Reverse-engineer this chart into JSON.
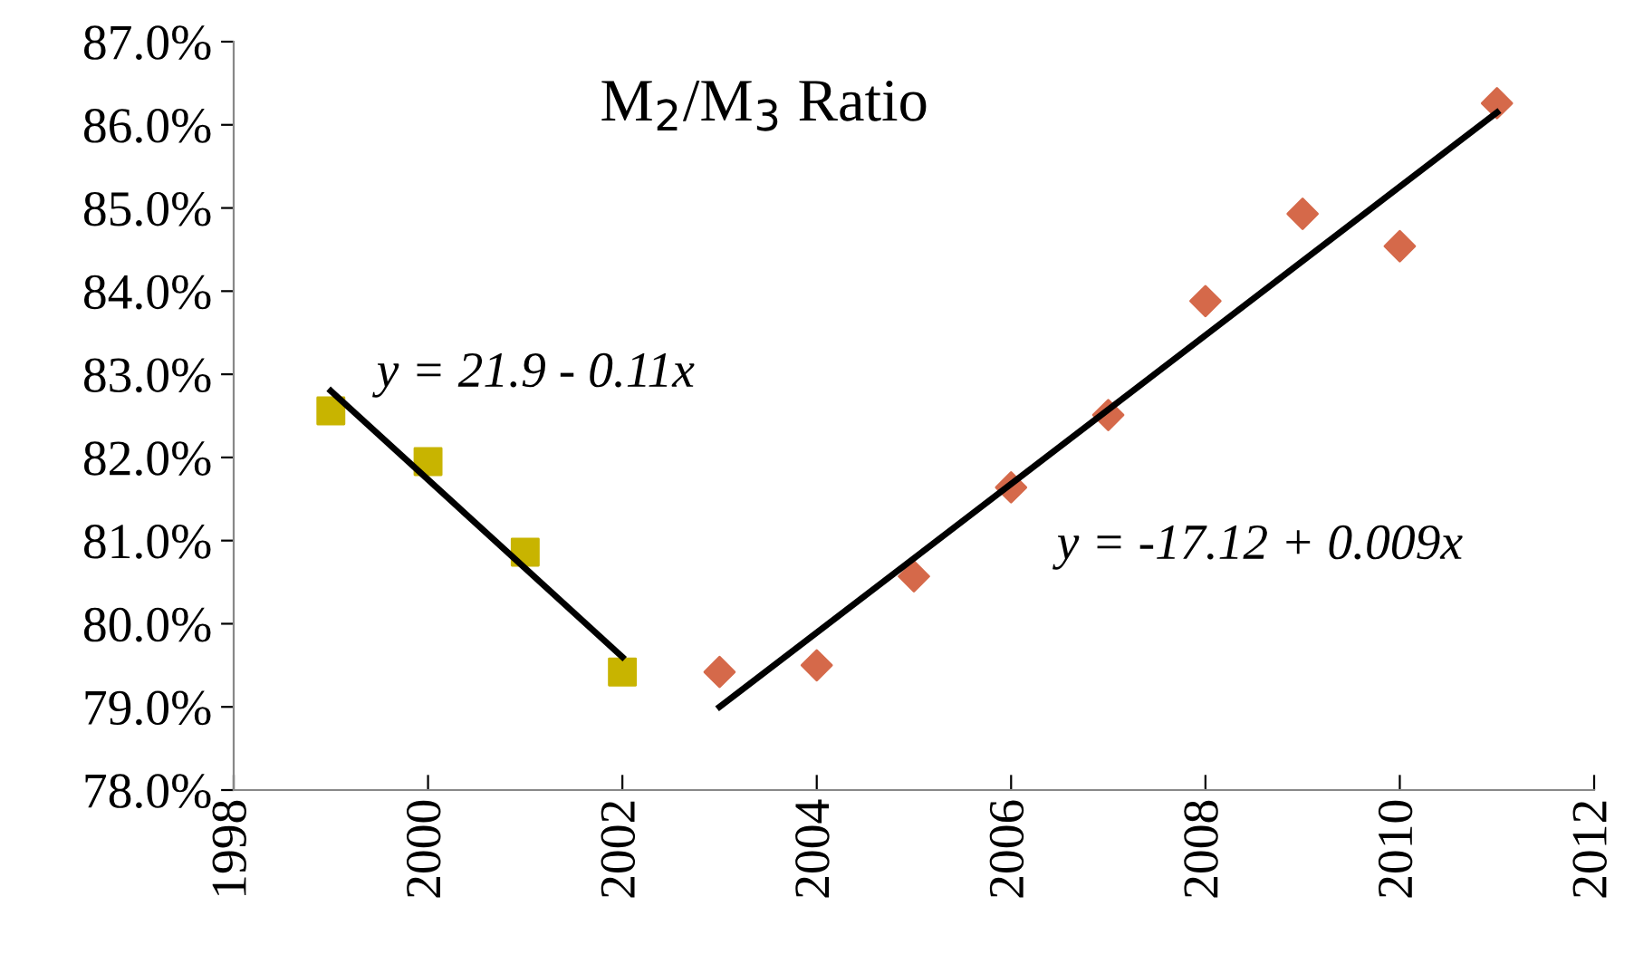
{
  "chart_data": {
    "type": "scatter",
    "title": "M$_{2}$/M$_{3}$ Ratio",
    "xlim": [
      1998,
      2012
    ],
    "xticks": [
      1998,
      2000,
      2002,
      2004,
      2006,
      2008,
      2010,
      2012
    ],
    "ylim": [
      78,
      87
    ],
    "yticks": [
      {
        "value": 78,
        "label": "78.0%"
      },
      {
        "value": 79,
        "label": "79.0%"
      },
      {
        "value": 80,
        "label": "80.0%"
      },
      {
        "value": 81,
        "label": "81.0%"
      },
      {
        "value": 82,
        "label": "82.0%"
      },
      {
        "value": 83,
        "label": "83.0%"
      },
      {
        "value": 84,
        "label": "84.0%"
      },
      {
        "value": 85,
        "label": "85.0%"
      },
      {
        "value": 86,
        "label": "86.0%"
      },
      {
        "value": 87,
        "label": "87.0%"
      }
    ],
    "grid": false,
    "legend": false,
    "series": [
      {
        "marker": "square",
        "color": "#c8b400",
        "x": [
          1999,
          2000,
          2001,
          2002
        ],
        "values": [
          82.56,
          81.95,
          80.86,
          79.42
        ]
      },
      {
        "marker": "diamond",
        "color": "#d5694a",
        "x": [
          2003,
          2004,
          2005,
          2006,
          2007,
          2008,
          2009,
          2010,
          2011
        ],
        "values": [
          79.42,
          79.5,
          80.57,
          81.64,
          82.51,
          83.88,
          84.93,
          84.54,
          86.26
        ]
      },
      {
        "type": "line",
        "marker": "none",
        "line_style": "solid",
        "color": "#000000",
        "x": [
          1999,
          2002
        ],
        "values": [
          82.8,
          79.6
        ]
      },
      {
        "type": "line",
        "marker": "none",
        "line_style": "solid",
        "color": "#000000",
        "x": [
          2003,
          2011
        ],
        "values": [
          79.0,
          86.15
        ]
      }
    ],
    "annotations": [
      "y = 21.9 - 0.11x",
      "y = -17.12 + 0.009x"
    ]
  }
}
